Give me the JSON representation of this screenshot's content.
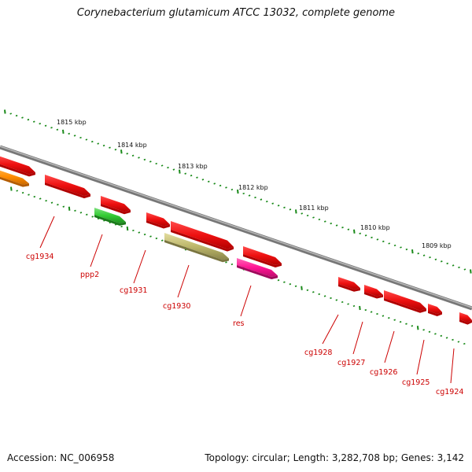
{
  "title": "Corynebacterium glutamicum ATCC 13032, complete genome",
  "footer": {
    "accession": "Accession: NC_006958",
    "summary": "Topology: circular; Length: 3,282,708 bp; Genes: 3,142"
  },
  "colors": {
    "backbone": "#8c8c8c",
    "tick": "#1a8a1a",
    "gene_red": "#ee1111",
    "gene_orange": "#ff8c00",
    "gene_green": "#33cc33",
    "gene_olive": "#bdb76b",
    "gene_magenta": "#ff1493",
    "label": "#cc0000"
  },
  "scale": {
    "unit": "kbp",
    "markers": [
      {
        "label": "1815 kbp",
        "kbp": 1815
      },
      {
        "label": "1814 kbp",
        "kbp": 1814
      },
      {
        "label": "1813 kbp",
        "kbp": 1813
      },
      {
        "label": "1812 kbp",
        "kbp": 1812
      },
      {
        "label": "1811 kbp",
        "kbp": 1811
      },
      {
        "label": "1810 kbp",
        "kbp": 1810
      },
      {
        "label": "1809 kbp",
        "kbp": 1809
      }
    ]
  },
  "genes": [
    {
      "name": "cg1934",
      "strand": "+",
      "color": "#ee1111"
    },
    {
      "name": "ppp2",
      "strand": "+",
      "color": "#33cc33"
    },
    {
      "name": "cg1931",
      "strand": "+",
      "color": "#ee1111"
    },
    {
      "name": "cg1930",
      "strand": "+",
      "color": "#bdb76b"
    },
    {
      "name": "res",
      "strand": "+",
      "color": "#ff1493"
    },
    {
      "name": "cg1928",
      "strand": "+",
      "color": "#ee1111"
    },
    {
      "name": "cg1927",
      "strand": "+",
      "color": "#ee1111"
    },
    {
      "name": "cg1926",
      "strand": "+",
      "color": "#ee1111"
    },
    {
      "name": "cg1925",
      "strand": "+",
      "color": "#ee1111"
    },
    {
      "name": "cg1924",
      "strand": "+",
      "color": "#ee1111"
    }
  ]
}
